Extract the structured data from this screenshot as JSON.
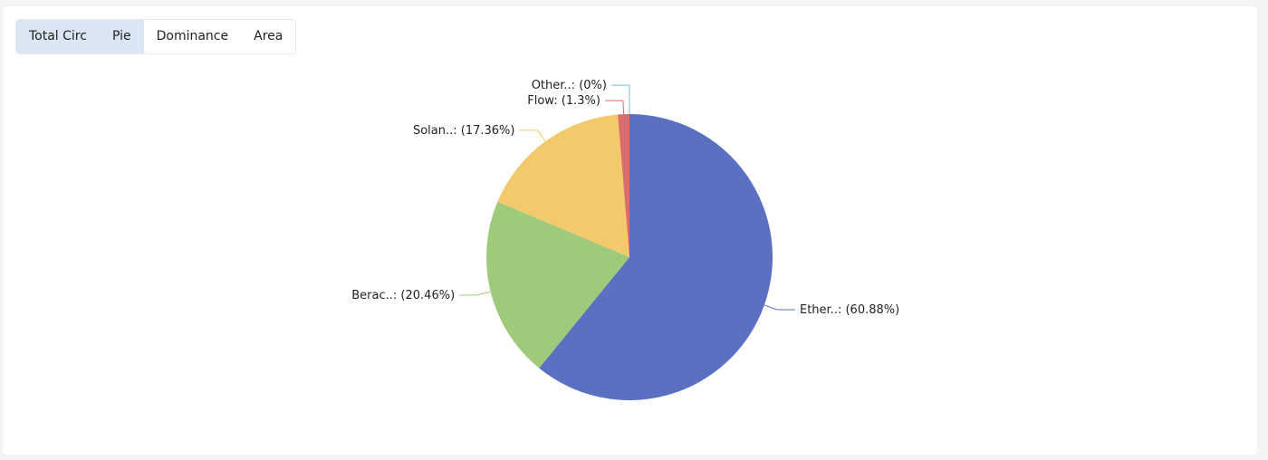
{
  "tabs": [
    "Total Circ",
    "Pie",
    "Dominance",
    "Area"
  ],
  "chart_data": {
    "type": "pie",
    "categories": [
      "Ether..:",
      "Berac..:",
      "Solan..:",
      "Flow:",
      "Other..:"
    ],
    "values": [
      60.88,
      20.46,
      17.36,
      1.3,
      0
    ],
    "value_labels": [
      "(60.88%)",
      "(20.46%)",
      "(17.36%)",
      "(1.3%)",
      "(0%)"
    ],
    "colors": [
      "#5b70c1",
      "#9fca7b",
      "#f2c96b",
      "#dc6b6b",
      "#73c0de"
    ]
  }
}
